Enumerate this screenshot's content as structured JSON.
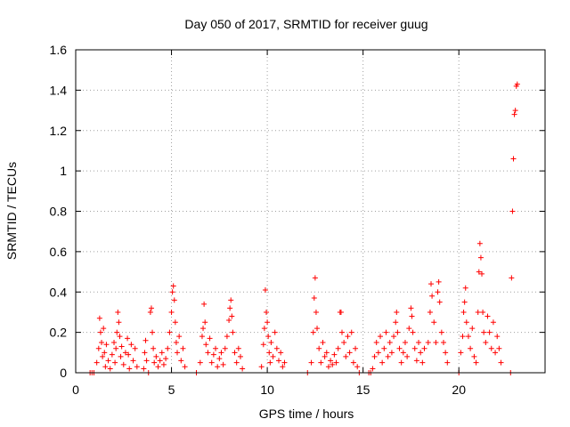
{
  "chart_data": {
    "type": "scatter",
    "title": "Day 050 of 2017, SRMTID for receiver guug",
    "xlabel": "GPS time / hours",
    "ylabel": "SRMTID / TECUs",
    "xlim": [
      0,
      24.5
    ],
    "ylim": [
      0,
      1.6
    ],
    "xticks": [
      0,
      5,
      10,
      15,
      20
    ],
    "xtick_labels": [
      "0",
      "5",
      "10",
      "15",
      "20"
    ],
    "yticks": [
      0,
      0.2,
      0.4,
      0.6,
      0.8,
      1,
      1.2,
      1.4,
      1.6
    ],
    "ytick_labels": [
      "0",
      "0.2",
      "0.4",
      "0.6",
      "0.8",
      "1",
      "1.2",
      "1.4",
      "1.6"
    ],
    "grid": true,
    "marker": "plus",
    "marker_color": "#ff0000",
    "series": [
      {
        "name": "SRMTID",
        "points": [
          [
            0.75,
            0.0
          ],
          [
            0.85,
            0.0
          ],
          [
            0.95,
            0.0
          ],
          [
            1.1,
            0.05
          ],
          [
            1.2,
            0.12
          ],
          [
            1.25,
            0.27
          ],
          [
            1.3,
            0.2
          ],
          [
            1.35,
            0.15
          ],
          [
            1.4,
            0.08
          ],
          [
            1.45,
            0.22
          ],
          [
            1.5,
            0.1
          ],
          [
            1.55,
            0.03
          ],
          [
            1.6,
            0.14
          ],
          [
            1.7,
            0.06
          ],
          [
            1.8,
            0.02
          ],
          [
            1.9,
            0.09
          ],
          [
            2.0,
            0.15
          ],
          [
            2.05,
            0.05
          ],
          [
            2.1,
            0.12
          ],
          [
            2.15,
            0.2
          ],
          [
            2.2,
            0.3
          ],
          [
            2.25,
            0.25
          ],
          [
            2.3,
            0.18
          ],
          [
            2.35,
            0.08
          ],
          [
            2.4,
            0.13
          ],
          [
            2.5,
            0.04
          ],
          [
            2.6,
            0.1
          ],
          [
            2.7,
            0.17
          ],
          [
            2.75,
            0.09
          ],
          [
            2.8,
            0.02
          ],
          [
            2.9,
            0.14
          ],
          [
            3.0,
            0.06
          ],
          [
            3.1,
            0.12
          ],
          [
            3.2,
            0.03
          ],
          [
            3.55,
            0.02
          ],
          [
            3.6,
            0.1
          ],
          [
            3.65,
            0.16
          ],
          [
            3.7,
            0.06
          ],
          [
            3.8,
            0.0
          ],
          [
            3.9,
            0.3
          ],
          [
            3.95,
            0.32
          ],
          [
            4.0,
            0.2
          ],
          [
            4.05,
            0.12
          ],
          [
            4.1,
            0.05
          ],
          [
            4.2,
            0.08
          ],
          [
            4.3,
            0.03
          ],
          [
            4.4,
            0.06
          ],
          [
            4.5,
            0.1
          ],
          [
            4.6,
            0.04
          ],
          [
            4.7,
            0.07
          ],
          [
            4.8,
            0.12
          ],
          [
            4.9,
            0.2
          ],
          [
            5.0,
            0.3
          ],
          [
            5.05,
            0.4
          ],
          [
            5.1,
            0.43
          ],
          [
            5.15,
            0.36
          ],
          [
            5.2,
            0.25
          ],
          [
            5.25,
            0.15
          ],
          [
            5.3,
            0.1
          ],
          [
            5.4,
            0.18
          ],
          [
            5.5,
            0.06
          ],
          [
            5.6,
            0.12
          ],
          [
            5.7,
            0.03
          ],
          [
            6.3,
            0.0
          ],
          [
            6.5,
            0.05
          ],
          [
            6.6,
            0.18
          ],
          [
            6.65,
            0.22
          ],
          [
            6.7,
            0.34
          ],
          [
            6.75,
            0.25
          ],
          [
            6.8,
            0.14
          ],
          [
            6.9,
            0.1
          ],
          [
            7.0,
            0.17
          ],
          [
            7.1,
            0.05
          ],
          [
            7.2,
            0.09
          ],
          [
            7.3,
            0.12
          ],
          [
            7.4,
            0.03
          ],
          [
            7.5,
            0.07
          ],
          [
            7.6,
            0.1
          ],
          [
            7.7,
            0.04
          ],
          [
            7.8,
            0.12
          ],
          [
            7.9,
            0.18
          ],
          [
            8.0,
            0.26
          ],
          [
            8.05,
            0.32
          ],
          [
            8.1,
            0.36
          ],
          [
            8.15,
            0.28
          ],
          [
            8.2,
            0.2
          ],
          [
            8.3,
            0.1
          ],
          [
            8.4,
            0.05
          ],
          [
            8.5,
            0.12
          ],
          [
            8.6,
            0.08
          ],
          [
            8.7,
            0.02
          ],
          [
            9.7,
            0.03
          ],
          [
            9.8,
            0.14
          ],
          [
            9.85,
            0.22
          ],
          [
            9.9,
            0.41
          ],
          [
            9.95,
            0.3
          ],
          [
            10.0,
            0.25
          ],
          [
            10.05,
            0.18
          ],
          [
            10.1,
            0.1
          ],
          [
            10.15,
            0.05
          ],
          [
            10.2,
            0.15
          ],
          [
            10.3,
            0.08
          ],
          [
            10.4,
            0.2
          ],
          [
            10.5,
            0.12
          ],
          [
            10.6,
            0.06
          ],
          [
            10.7,
            0.1
          ],
          [
            10.8,
            0.03
          ],
          [
            10.9,
            0.05
          ],
          [
            12.1,
            0.0
          ],
          [
            12.3,
            0.05
          ],
          [
            12.4,
            0.2
          ],
          [
            12.45,
            0.37
          ],
          [
            12.5,
            0.47
          ],
          [
            12.55,
            0.3
          ],
          [
            12.6,
            0.22
          ],
          [
            12.7,
            0.12
          ],
          [
            12.8,
            0.05
          ],
          [
            12.9,
            0.15
          ],
          [
            13.0,
            0.08
          ],
          [
            13.1,
            0.1
          ],
          [
            13.2,
            0.03
          ],
          [
            13.3,
            0.06
          ],
          [
            13.4,
            0.04
          ],
          [
            13.5,
            0.09
          ],
          [
            13.6,
            0.05
          ],
          [
            13.7,
            0.12
          ],
          [
            13.8,
            0.3
          ],
          [
            13.85,
            0.3
          ],
          [
            13.9,
            0.2
          ],
          [
            14.0,
            0.15
          ],
          [
            14.1,
            0.08
          ],
          [
            14.2,
            0.18
          ],
          [
            14.3,
            0.1
          ],
          [
            14.4,
            0.2
          ],
          [
            14.5,
            0.05
          ],
          [
            14.6,
            0.12
          ],
          [
            14.7,
            0.03
          ],
          [
            14.8,
            0.0
          ],
          [
            15.3,
            0.0
          ],
          [
            15.4,
            0.0
          ],
          [
            15.5,
            0.02
          ],
          [
            15.6,
            0.08
          ],
          [
            15.7,
            0.15
          ],
          [
            15.8,
            0.1
          ],
          [
            15.9,
            0.18
          ],
          [
            16.0,
            0.05
          ],
          [
            16.1,
            0.12
          ],
          [
            16.2,
            0.2
          ],
          [
            16.3,
            0.08
          ],
          [
            16.4,
            0.15
          ],
          [
            16.5,
            0.1
          ],
          [
            16.6,
            0.18
          ],
          [
            16.7,
            0.25
          ],
          [
            16.75,
            0.3
          ],
          [
            16.8,
            0.2
          ],
          [
            16.9,
            0.12
          ],
          [
            17.0,
            0.05
          ],
          [
            17.1,
            0.1
          ],
          [
            17.2,
            0.15
          ],
          [
            17.3,
            0.08
          ],
          [
            17.4,
            0.22
          ],
          [
            17.5,
            0.32
          ],
          [
            17.55,
            0.28
          ],
          [
            17.6,
            0.2
          ],
          [
            17.7,
            0.12
          ],
          [
            17.8,
            0.06
          ],
          [
            17.9,
            0.15
          ],
          [
            18.0,
            0.1
          ],
          [
            18.1,
            0.05
          ],
          [
            18.2,
            0.12
          ],
          [
            18.4,
            0.15
          ],
          [
            18.5,
            0.3
          ],
          [
            18.55,
            0.44
          ],
          [
            18.6,
            0.38
          ],
          [
            18.7,
            0.25
          ],
          [
            18.8,
            0.15
          ],
          [
            18.9,
            0.4
          ],
          [
            18.95,
            0.45
          ],
          [
            19.0,
            0.35
          ],
          [
            19.1,
            0.2
          ],
          [
            19.2,
            0.15
          ],
          [
            19.3,
            0.1
          ],
          [
            19.4,
            0.05
          ],
          [
            20.0,
            0.0
          ],
          [
            20.1,
            0.1
          ],
          [
            20.2,
            0.18
          ],
          [
            20.25,
            0.3
          ],
          [
            20.3,
            0.35
          ],
          [
            20.35,
            0.42
          ],
          [
            20.4,
            0.25
          ],
          [
            20.5,
            0.18
          ],
          [
            20.6,
            0.12
          ],
          [
            20.7,
            0.22
          ],
          [
            20.8,
            0.08
          ],
          [
            20.9,
            0.05
          ],
          [
            21.0,
            0.3
          ],
          [
            21.05,
            0.5
          ],
          [
            21.1,
            0.64
          ],
          [
            21.15,
            0.57
          ],
          [
            21.2,
            0.49
          ],
          [
            21.25,
            0.3
          ],
          [
            21.3,
            0.2
          ],
          [
            21.4,
            0.15
          ],
          [
            21.5,
            0.28
          ],
          [
            21.6,
            0.2
          ],
          [
            21.7,
            0.12
          ],
          [
            21.8,
            0.25
          ],
          [
            21.9,
            0.1
          ],
          [
            22.0,
            0.18
          ],
          [
            22.1,
            0.12
          ],
          [
            22.2,
            0.05
          ],
          [
            22.7,
            0.0
          ],
          [
            22.75,
            0.47
          ],
          [
            22.8,
            0.8
          ],
          [
            22.85,
            1.06
          ],
          [
            22.9,
            1.28
          ],
          [
            22.95,
            1.3
          ],
          [
            23.0,
            1.42
          ],
          [
            23.05,
            1.43
          ]
        ]
      }
    ]
  }
}
